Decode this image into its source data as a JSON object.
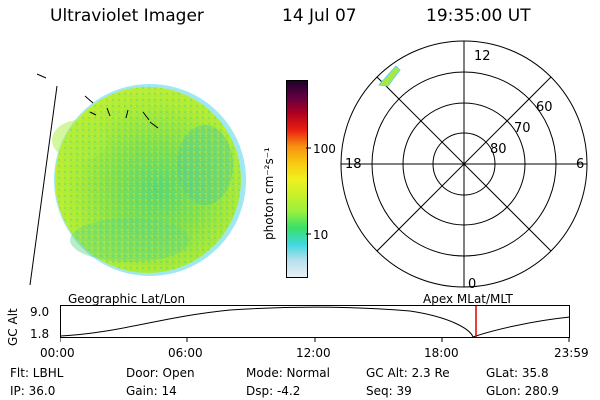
{
  "header": {
    "title": "Ultraviolet Imager",
    "date": "14 Jul 07",
    "time": "19:35:00 UT"
  },
  "colorbar": {
    "label": "photon cm⁻²s⁻¹",
    "ticks": [
      "100",
      "10"
    ],
    "scale": "log",
    "colors": [
      "#e8f0f4",
      "#b8e0ec",
      "#40d8e0",
      "#38e068",
      "#98f040",
      "#c8f028",
      "#f0f020",
      "#f8c810",
      "#f89010",
      "#e82010",
      "#b00020",
      "#600040",
      "#20002c"
    ]
  },
  "polar_plot": {
    "lat_labels": [
      "60",
      "70",
      "80"
    ],
    "mlt_labels": {
      "top": "12",
      "bottom": "0",
      "left": "18",
      "right": "6"
    }
  },
  "orbit_panel": {
    "left_title": "Geographic Lat/Lon",
    "right_title": "Apex MLat/MLT",
    "ylabel": "GC Alt",
    "y_ticks": [
      "9.0",
      "1.8"
    ],
    "x_ticks": [
      "00:00",
      "06:00",
      "12:00",
      "18:00",
      "23:59"
    ],
    "current_marker_color": "#dd0000"
  },
  "info": {
    "row1": {
      "flt": "Flt: LBHL",
      "door": "Door: Open",
      "mode": "Mode: Normal",
      "gcalt": "GC Alt: 2.3 Re",
      "glat": "GLat:  35.8"
    },
    "row2": {
      "ip": "IP: 36.0",
      "gain": "Gain: 14",
      "dsp": "Dsp:    -4.2",
      "seq": "Seq: 39",
      "glon": "GLon: 280.9"
    }
  }
}
